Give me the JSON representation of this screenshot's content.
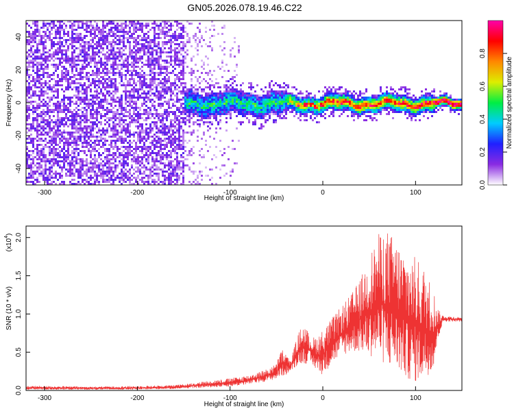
{
  "title": "GN05.2026.078.19.46.C22",
  "chart_data": [
    {
      "type": "heatmap",
      "xlabel": "Height of straight line (km)",
      "ylabel": "Frequency (Hz)",
      "xlim": [
        -320,
        150
      ],
      "ylim": [
        -50,
        50
      ],
      "x_ticks": [
        -300,
        -200,
        -100,
        0,
        100
      ],
      "y_ticks": [
        -40,
        -20,
        0,
        20,
        40
      ],
      "colorbar": {
        "label": "Normalized spectral amplitude",
        "range": [
          0,
          1
        ],
        "ticks": [
          "0.0",
          "0.2",
          "0.4",
          "0.6",
          "0.8"
        ],
        "tick_values": [
          0.0,
          0.2,
          0.4,
          0.6,
          0.8
        ],
        "colors": [
          "#ffffff",
          "#8a2be2",
          "#2020ff",
          "#00ccff",
          "#00ee44",
          "#ddee00",
          "#ff8800",
          "#ff0000",
          "#ff00aa"
        ]
      },
      "regions": [
        {
          "description": "broadband noise",
          "x_range": [
            -320,
            -150
          ],
          "freq_range": [
            -50,
            50
          ],
          "amplitude": 0.12
        },
        {
          "description": "sparse noise tail",
          "x_range": [
            -150,
            -90
          ],
          "freq_range": [
            -50,
            50
          ],
          "amplitude": 0.06
        },
        {
          "description": "signal band",
          "x_range": [
            -150,
            150
          ],
          "center_freq": 0,
          "half_width_hz": 6,
          "amplitude_range": [
            0.3,
            1.0
          ]
        }
      ]
    },
    {
      "type": "line",
      "xlabel": "Height of straight line (km)",
      "ylabel": "SNR (10 * v/v)",
      "scale_label": "(x10",
      "scale_exponent": "4",
      "xlim": [
        -320,
        150
      ],
      "ylim": [
        0,
        2.15
      ],
      "x_ticks": [
        -300,
        -200,
        -100,
        0,
        100
      ],
      "y_ticks": [
        "0.0",
        "0.5",
        "1.0",
        "1.5",
        "2.0"
      ],
      "y_tick_values": [
        0.0,
        0.5,
        1.0,
        1.5,
        2.0
      ],
      "series": [
        {
          "name": "SNR",
          "color": "#ee3333",
          "x": [
            -320,
            -300,
            -250,
            -200,
            -160,
            -140,
            -120,
            -100,
            -80,
            -60,
            -50,
            -45,
            -40,
            -35,
            -30,
            -25,
            -20,
            -15,
            -10,
            -5,
            0,
            10,
            20,
            30,
            40,
            50,
            60,
            70,
            80,
            90,
            100,
            110,
            120,
            125,
            130,
            140,
            150
          ],
          "envelope_min": [
            0.01,
            0.01,
            0.01,
            0.01,
            0.02,
            0.03,
            0.04,
            0.05,
            0.08,
            0.12,
            0.15,
            0.18,
            0.2,
            0.25,
            0.3,
            0.35,
            0.35,
            0.35,
            0.3,
            0.25,
            0.2,
            0.35,
            0.45,
            0.5,
            0.5,
            0.45,
            0.4,
            0.3,
            0.25,
            0.15,
            0.1,
            0.15,
            0.3,
            0.7,
            0.9,
            0.9,
            0.9
          ],
          "envelope_max": [
            0.06,
            0.06,
            0.05,
            0.06,
            0.07,
            0.1,
            0.13,
            0.16,
            0.2,
            0.28,
            0.35,
            0.55,
            0.5,
            0.38,
            0.6,
            0.8,
            0.85,
            0.75,
            0.7,
            0.72,
            0.8,
            0.95,
            1.1,
            1.25,
            1.45,
            1.75,
            2.05,
            2.1,
            1.95,
            1.8,
            1.75,
            1.6,
            1.3,
            1.05,
            0.98,
            0.97,
            0.96
          ]
        }
      ]
    }
  ]
}
